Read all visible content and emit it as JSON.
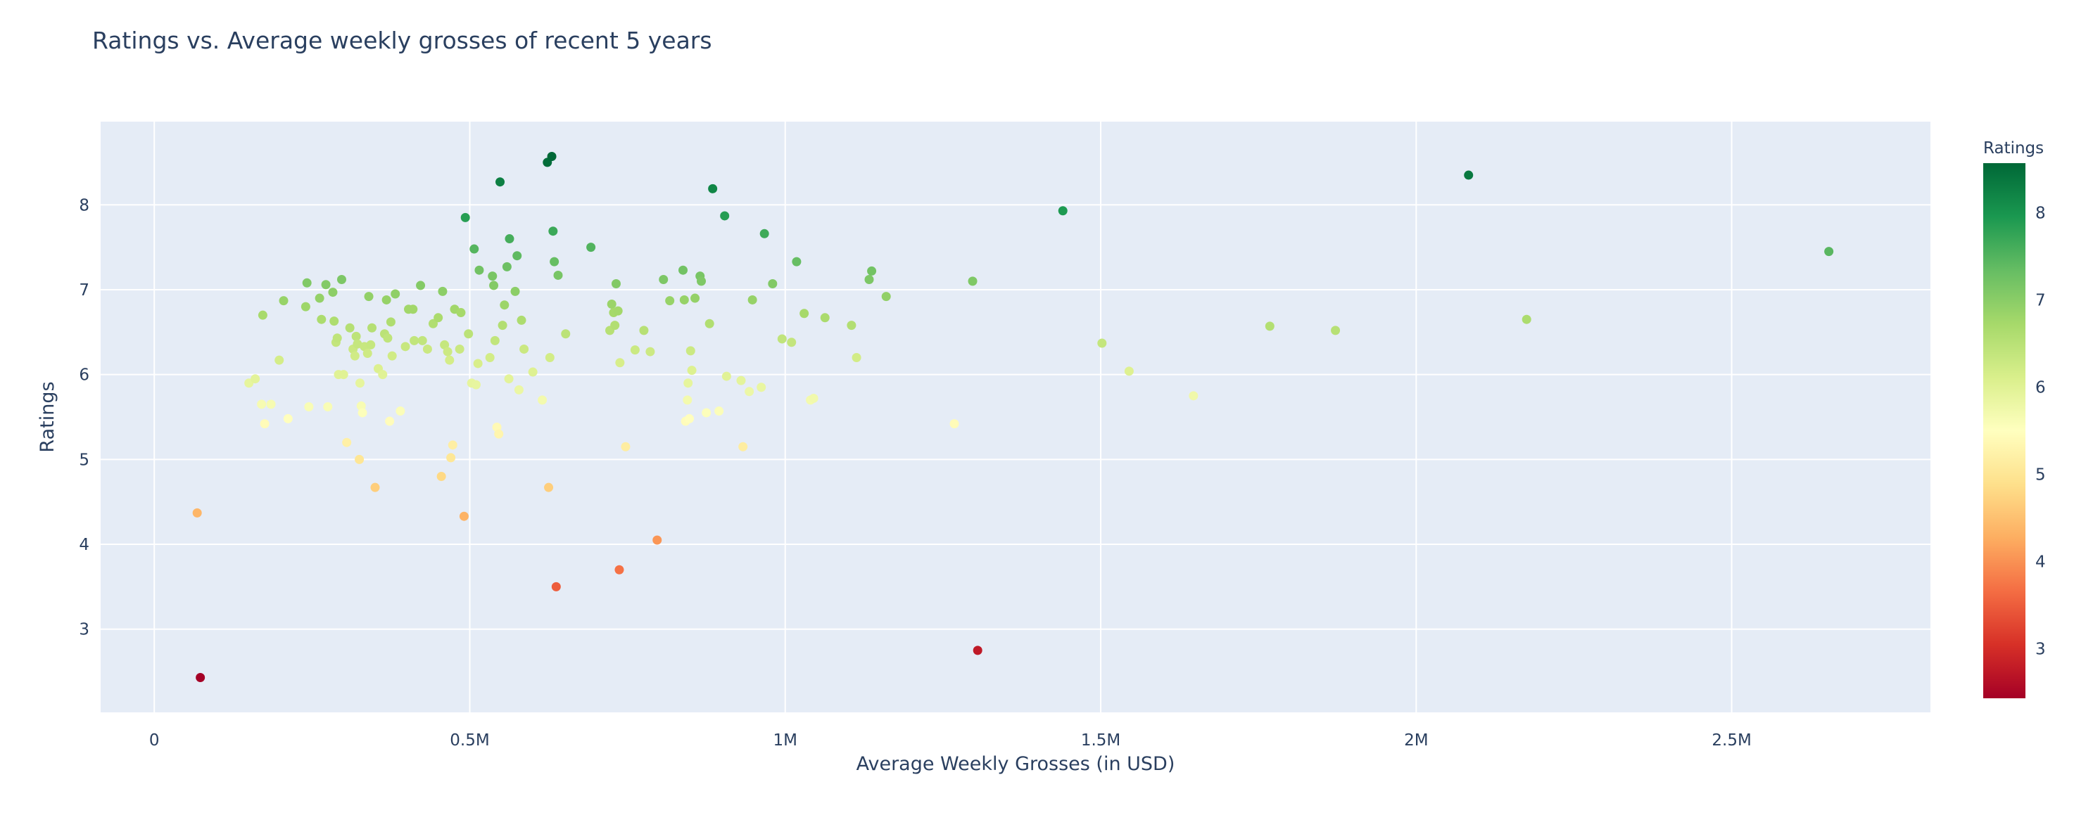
{
  "chart_data": {
    "type": "scatter",
    "title": "Ratings vs. Average weekly grosses of recent 5 years",
    "xlabel": "Average Weekly Grosses (in USD)",
    "ylabel": "Ratings",
    "xlim": [
      -85000,
      2815000
    ],
    "ylim": [
      2.02,
      8.98
    ],
    "xticks": [
      {
        "value": 0,
        "label": "0"
      },
      {
        "value": 500000,
        "label": "0.5M"
      },
      {
        "value": 1000000,
        "label": "1M"
      },
      {
        "value": 1500000,
        "label": "1.5M"
      },
      {
        "value": 2000000,
        "label": "2M"
      },
      {
        "value": 2500000,
        "label": "2.5M"
      }
    ],
    "yticks": [
      {
        "value": 3,
        "label": "3"
      },
      {
        "value": 4,
        "label": "4"
      },
      {
        "value": 5,
        "label": "5"
      },
      {
        "value": 6,
        "label": "6"
      },
      {
        "value": 7,
        "label": "7"
      },
      {
        "value": 8,
        "label": "8"
      }
    ],
    "grid": true,
    "colorbar": {
      "title": "Ratings",
      "colorscale": "RdYlGn",
      "range": [
        2.43,
        8.57
      ],
      "ticks": [
        3,
        4,
        5,
        6,
        7,
        8
      ],
      "stops": [
        "#a50026",
        "#d73027",
        "#f46d43",
        "#fdae61",
        "#fee08b",
        "#ffffbf",
        "#d9ef8b",
        "#a6d96a",
        "#66bd63",
        "#1a9850",
        "#006837"
      ]
    },
    "points": [
      [
        68000,
        4.37
      ],
      [
        73000,
        2.43
      ],
      [
        150000,
        5.9
      ],
      [
        160000,
        5.95
      ],
      [
        170000,
        5.65
      ],
      [
        172000,
        6.7
      ],
      [
        175000,
        5.42
      ],
      [
        185000,
        5.65
      ],
      [
        198000,
        6.17
      ],
      [
        205000,
        6.87
      ],
      [
        212000,
        5.48
      ],
      [
        240000,
        6.8
      ],
      [
        242000,
        7.08
      ],
      [
        245000,
        5.62
      ],
      [
        262000,
        6.9
      ],
      [
        265000,
        6.65
      ],
      [
        272000,
        7.06
      ],
      [
        275000,
        5.62
      ],
      [
        283000,
        6.97
      ],
      [
        285000,
        6.63
      ],
      [
        288000,
        6.38
      ],
      [
        290000,
        6.43
      ],
      [
        292000,
        6.0
      ],
      [
        297000,
        7.12
      ],
      [
        300000,
        6.0
      ],
      [
        305000,
        5.2
      ],
      [
        310000,
        6.55
      ],
      [
        315000,
        6.3
      ],
      [
        318000,
        6.22
      ],
      [
        320000,
        6.45
      ],
      [
        322000,
        6.36
      ],
      [
        325000,
        5.0
      ],
      [
        326000,
        5.9
      ],
      [
        328000,
        5.63
      ],
      [
        330000,
        5.55
      ],
      [
        333000,
        6.33
      ],
      [
        338000,
        6.25
      ],
      [
        340000,
        6.92
      ],
      [
        343000,
        6.35
      ],
      [
        345000,
        6.55
      ],
      [
        350000,
        4.67
      ],
      [
        355000,
        6.07
      ],
      [
        362000,
        6.0
      ],
      [
        365000,
        6.48
      ],
      [
        368000,
        6.88
      ],
      [
        370000,
        6.43
      ],
      [
        373000,
        5.45
      ],
      [
        375000,
        6.62
      ],
      [
        377000,
        6.22
      ],
      [
        382000,
        6.95
      ],
      [
        390000,
        5.57
      ],
      [
        398000,
        6.33
      ],
      [
        403000,
        6.77
      ],
      [
        410000,
        6.77
      ],
      [
        412000,
        6.4
      ],
      [
        422000,
        7.05
      ],
      [
        425000,
        6.4
      ],
      [
        433000,
        6.3
      ],
      [
        442000,
        6.6
      ],
      [
        450000,
        6.67
      ],
      [
        455000,
        4.8
      ],
      [
        457000,
        6.98
      ],
      [
        460000,
        6.35
      ],
      [
        465000,
        6.27
      ],
      [
        468000,
        6.17
      ],
      [
        470000,
        5.02
      ],
      [
        473000,
        5.17
      ],
      [
        476000,
        6.77
      ],
      [
        484000,
        6.3
      ],
      [
        486000,
        6.73
      ],
      [
        491000,
        4.33
      ],
      [
        493000,
        7.85
      ],
      [
        498000,
        6.48
      ],
      [
        503000,
        5.9
      ],
      [
        507000,
        7.48
      ],
      [
        510000,
        5.88
      ],
      [
        513000,
        6.13
      ],
      [
        515000,
        7.23
      ],
      [
        532000,
        6.2
      ],
      [
        536000,
        7.16
      ],
      [
        538000,
        7.05
      ],
      [
        540000,
        6.4
      ],
      [
        543000,
        5.38
      ],
      [
        546000,
        5.3
      ],
      [
        548000,
        8.27
      ],
      [
        552000,
        6.58
      ],
      [
        555000,
        6.82
      ],
      [
        559000,
        7.27
      ],
      [
        562000,
        5.95
      ],
      [
        563000,
        7.6
      ],
      [
        572000,
        6.98
      ],
      [
        575000,
        7.4
      ],
      [
        578000,
        5.82
      ],
      [
        582000,
        6.64
      ],
      [
        586000,
        6.3
      ],
      [
        600000,
        6.03
      ],
      [
        615000,
        5.7
      ],
      [
        623000,
        8.5
      ],
      [
        625000,
        4.67
      ],
      [
        627000,
        6.2
      ],
      [
        630000,
        8.57
      ],
      [
        632000,
        7.69
      ],
      [
        634000,
        7.33
      ],
      [
        637000,
        3.5
      ],
      [
        640000,
        7.17
      ],
      [
        652000,
        6.48
      ],
      [
        692000,
        7.5
      ],
      [
        722000,
        6.52
      ],
      [
        725000,
        6.83
      ],
      [
        728000,
        6.73
      ],
      [
        730000,
        6.58
      ],
      [
        732000,
        7.07
      ],
      [
        735000,
        6.75
      ],
      [
        737000,
        3.7
      ],
      [
        738000,
        6.14
      ],
      [
        747000,
        5.15
      ],
      [
        762000,
        6.29
      ],
      [
        776000,
        6.52
      ],
      [
        786000,
        6.27
      ],
      [
        797000,
        4.05
      ],
      [
        807000,
        7.12
      ],
      [
        817000,
        6.87
      ],
      [
        838000,
        7.23
      ],
      [
        840000,
        6.88
      ],
      [
        842000,
        5.45
      ],
      [
        845000,
        5.7
      ],
      [
        846000,
        5.9
      ],
      [
        848000,
        5.48
      ],
      [
        850000,
        6.28
      ],
      [
        852000,
        6.05
      ],
      [
        857000,
        6.9
      ],
      [
        865000,
        7.16
      ],
      [
        867000,
        7.1
      ],
      [
        875000,
        5.55
      ],
      [
        880000,
        6.6
      ],
      [
        885000,
        8.19
      ],
      [
        895000,
        5.57
      ],
      [
        904000,
        7.87
      ],
      [
        907000,
        5.98
      ],
      [
        930000,
        5.93
      ],
      [
        933000,
        5.15
      ],
      [
        943000,
        5.8
      ],
      [
        948000,
        6.88
      ],
      [
        962000,
        5.85
      ],
      [
        967000,
        7.66
      ],
      [
        980000,
        7.07
      ],
      [
        995000,
        6.42
      ],
      [
        1010000,
        6.38
      ],
      [
        1018000,
        7.33
      ],
      [
        1030000,
        6.72
      ],
      [
        1040000,
        5.7
      ],
      [
        1045000,
        5.72
      ],
      [
        1063000,
        6.67
      ],
      [
        1105000,
        6.58
      ],
      [
        1113000,
        6.2
      ],
      [
        1133000,
        7.12
      ],
      [
        1137000,
        7.22
      ],
      [
        1160000,
        6.92
      ],
      [
        1268000,
        5.42
      ],
      [
        1297000,
        7.1
      ],
      [
        1305000,
        2.75
      ],
      [
        1440000,
        7.93
      ],
      [
        1502000,
        6.37
      ],
      [
        1545000,
        6.04
      ],
      [
        1647000,
        5.75
      ],
      [
        1768000,
        6.57
      ],
      [
        1872000,
        6.52
      ],
      [
        2083000,
        8.35
      ],
      [
        2175000,
        6.65
      ],
      [
        2654000,
        7.45
      ]
    ]
  }
}
